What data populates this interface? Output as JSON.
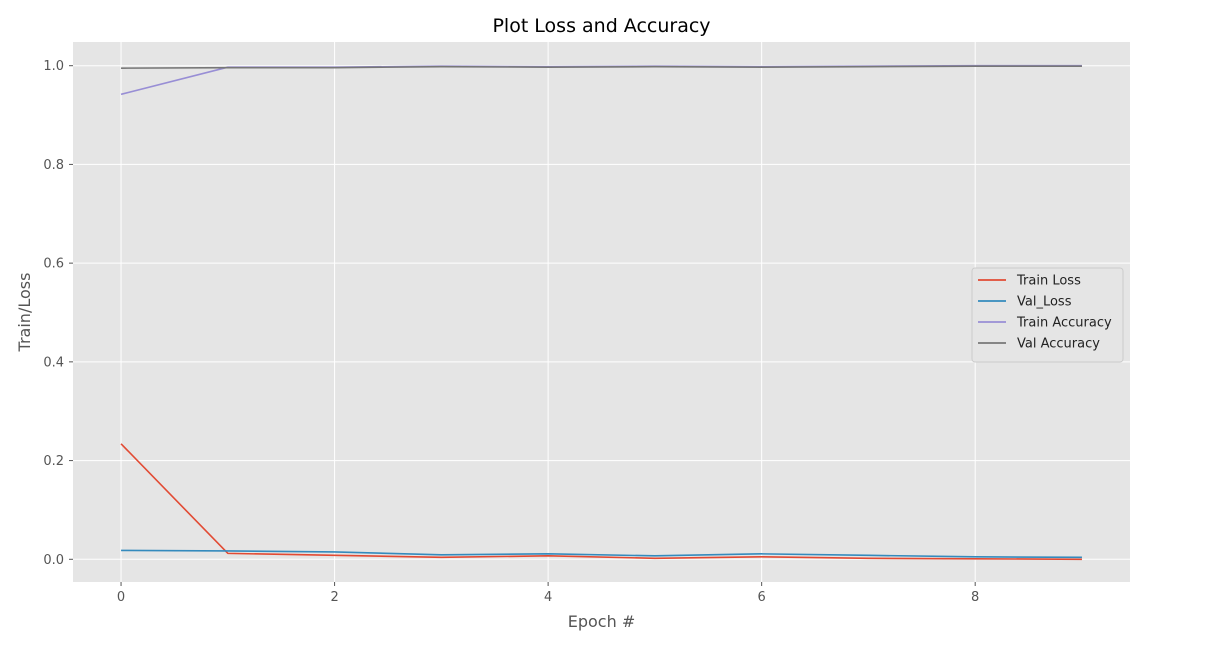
{
  "chart_data": {
    "type": "line",
    "title": "Plot Loss and Accuracy",
    "xlabel": "Epoch #",
    "ylabel": "Train/Loss",
    "x": [
      0,
      1,
      2,
      3,
      4,
      5,
      6,
      7,
      8,
      9
    ],
    "xlim": [
      -0.45,
      9.45
    ],
    "ylim": [
      -0.046,
      1.048
    ],
    "xticks": [
      0,
      2,
      4,
      6,
      8
    ],
    "yticks": [
      0.0,
      0.2,
      0.4,
      0.6,
      0.8,
      1.0
    ],
    "xtick_labels": [
      "0",
      "2",
      "4",
      "6",
      "8"
    ],
    "ytick_labels": [
      "0.0",
      "0.2",
      "0.4",
      "0.6",
      "0.8",
      "1.0"
    ],
    "grid": true,
    "legend_position": "center-right",
    "background_color": "#e5e5e5",
    "grid_color": "#ffffff",
    "series": [
      {
        "name": "Train Loss",
        "color": "#e24a33",
        "values": [
          0.234,
          0.012,
          0.008,
          0.004,
          0.007,
          0.002,
          0.005,
          0.002,
          0.001,
          0.0
        ]
      },
      {
        "name": "Val_Loss",
        "color": "#348abd",
        "values": [
          0.018,
          0.017,
          0.015,
          0.009,
          0.011,
          0.007,
          0.011,
          0.008,
          0.005,
          0.004
        ]
      },
      {
        "name": "Train Accuracy",
        "color": "#988ed5",
        "values": [
          0.942,
          0.997,
          0.997,
          0.999,
          0.998,
          0.999,
          0.998,
          0.999,
          1.0,
          1.0
        ]
      },
      {
        "name": "Val Accuracy",
        "color": "#777777",
        "values": [
          0.995,
          0.996,
          0.996,
          0.998,
          0.997,
          0.998,
          0.997,
          0.998,
          0.999,
          0.999
        ]
      }
    ]
  }
}
